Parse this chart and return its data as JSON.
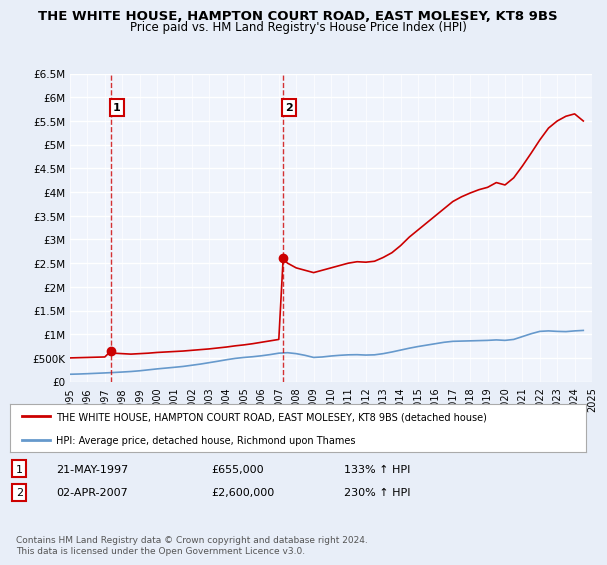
{
  "title": "THE WHITE HOUSE, HAMPTON COURT ROAD, EAST MOLESEY, KT8 9BS",
  "subtitle": "Price paid vs. HM Land Registry's House Price Index (HPI)",
  "legend_line1": "THE WHITE HOUSE, HAMPTON COURT ROAD, EAST MOLESEY, KT8 9BS (detached house)",
  "legend_line2": "HPI: Average price, detached house, Richmond upon Thames",
  "sale1_label": "1",
  "sale1_date": "21-MAY-1997",
  "sale1_price": "£655,000",
  "sale1_hpi": "133% ↑ HPI",
  "sale1_year": 1997.38,
  "sale1_value": 655000,
  "sale2_label": "2",
  "sale2_date": "02-APR-2007",
  "sale2_price": "£2,600,000",
  "sale2_hpi": "230% ↑ HPI",
  "sale2_year": 2007.25,
  "sale2_value": 2600000,
  "footer": "Contains HM Land Registry data © Crown copyright and database right 2024.\nThis data is licensed under the Open Government Licence v3.0.",
  "yticks": [
    0,
    500000,
    1000000,
    1500000,
    2000000,
    2500000,
    3000000,
    3500000,
    4000000,
    4500000,
    5000000,
    5500000,
    6000000,
    6500000
  ],
  "ylabels": [
    "£0",
    "£500K",
    "£1M",
    "£1.5M",
    "£2M",
    "£2.5M",
    "£3M",
    "£3.5M",
    "£4M",
    "£4.5M",
    "£5M",
    "£5.5M",
    "£6M",
    "£6.5M"
  ],
  "ymax": 6500000,
  "xmin": 1995,
  "xmax": 2025,
  "hpi_color": "#6699cc",
  "house_color": "#cc0000",
  "bg_color": "#e8eef8",
  "plot_bg": "#f0f4fc",
  "grid_color": "#ffffff",
  "hpi_years": [
    1995.0,
    1995.5,
    1996.0,
    1996.5,
    1997.0,
    1997.5,
    1998.0,
    1998.5,
    1999.0,
    1999.5,
    2000.0,
    2000.5,
    2001.0,
    2001.5,
    2002.0,
    2002.5,
    2003.0,
    2003.5,
    2004.0,
    2004.5,
    2005.0,
    2005.5,
    2006.0,
    2006.5,
    2007.0,
    2007.5,
    2008.0,
    2008.5,
    2009.0,
    2009.5,
    2010.0,
    2010.5,
    2011.0,
    2011.5,
    2012.0,
    2012.5,
    2013.0,
    2013.5,
    2014.0,
    2014.5,
    2015.0,
    2015.5,
    2016.0,
    2016.5,
    2017.0,
    2017.5,
    2018.0,
    2018.5,
    2019.0,
    2019.5,
    2020.0,
    2020.5,
    2021.0,
    2021.5,
    2022.0,
    2022.5,
    2023.0,
    2023.5,
    2024.0,
    2024.5
  ],
  "hpi_values": [
    155000,
    160000,
    167000,
    175000,
    183000,
    192000,
    202000,
    213000,
    228000,
    248000,
    268000,
    285000,
    302000,
    320000,
    345000,
    370000,
    400000,
    430000,
    462000,
    490000,
    510000,
    525000,
    545000,
    570000,
    600000,
    610000,
    590000,
    555000,
    510000,
    520000,
    540000,
    555000,
    565000,
    568000,
    560000,
    565000,
    590000,
    625000,
    665000,
    705000,
    740000,
    770000,
    800000,
    830000,
    850000,
    855000,
    860000,
    865000,
    870000,
    880000,
    870000,
    890000,
    950000,
    1010000,
    1060000,
    1070000,
    1060000,
    1055000,
    1070000,
    1080000
  ],
  "house_years": [
    1994.5,
    1995.0,
    1996.0,
    1996.5,
    1997.0,
    1997.38,
    1997.5,
    1998.0,
    1998.5,
    1999.0,
    1999.5,
    2000.0,
    2000.5,
    2001.0,
    2001.5,
    2002.0,
    2002.5,
    2003.0,
    2003.5,
    2004.0,
    2004.5,
    2005.0,
    2005.5,
    2006.0,
    2006.5,
    2007.0,
    2007.25,
    2007.5,
    2008.0,
    2008.5,
    2009.0,
    2009.5,
    2010.0,
    2010.5,
    2011.0,
    2011.5,
    2012.0,
    2012.5,
    2013.0,
    2013.5,
    2014.0,
    2014.5,
    2015.0,
    2015.5,
    2016.0,
    2016.5,
    2017.0,
    2017.5,
    2018.0,
    2018.5,
    2019.0,
    2019.5,
    2020.0,
    2020.5,
    2021.0,
    2021.5,
    2022.0,
    2022.5,
    2023.0,
    2023.5,
    2024.0,
    2024.5
  ],
  "house_values": [
    490000,
    500000,
    510000,
    515000,
    520000,
    655000,
    600000,
    590000,
    580000,
    590000,
    600000,
    615000,
    625000,
    635000,
    645000,
    660000,
    675000,
    690000,
    710000,
    730000,
    755000,
    775000,
    800000,
    830000,
    860000,
    890000,
    2600000,
    2500000,
    2400000,
    2350000,
    2300000,
    2350000,
    2400000,
    2450000,
    2500000,
    2530000,
    2520000,
    2540000,
    2620000,
    2720000,
    2870000,
    3050000,
    3200000,
    3350000,
    3500000,
    3650000,
    3800000,
    3900000,
    3980000,
    4050000,
    4100000,
    4200000,
    4150000,
    4300000,
    4550000,
    4820000,
    5100000,
    5350000,
    5500000,
    5600000,
    5650000,
    5500000
  ]
}
